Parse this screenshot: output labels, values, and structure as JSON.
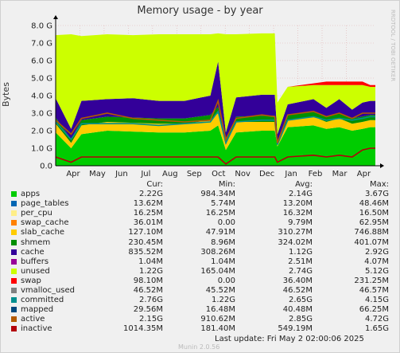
{
  "title": "Memory usage - by year",
  "ylabel": "Bytes",
  "side_text": "RRDTOOL / TOBI OETIKER",
  "watermark": "Munin 2.0.56",
  "last_update": "Last update: Fri May  2 02:00:06 2025",
  "legend_headers": {
    "cur": "Cur:",
    "min": "Min:",
    "avg": "Avg:",
    "max": "Max:"
  },
  "legend": [
    {
      "name": "apps",
      "color": "#00cc00",
      "cur": "2.22G",
      "min": "984.34M",
      "avg": "2.14G",
      "max": "3.67G"
    },
    {
      "name": "page_tables",
      "color": "#0066b3",
      "cur": "13.62M",
      "min": "5.74M",
      "avg": "13.20M",
      "max": "48.46M"
    },
    {
      "name": "per_cpu",
      "color": "#ffee88",
      "cur": "16.25M",
      "min": "16.25M",
      "avg": "16.32M",
      "max": "16.50M"
    },
    {
      "name": "swap_cache",
      "color": "#ff8000",
      "cur": "36.01M",
      "min": "0.00",
      "avg": "9.79M",
      "max": "62.95M"
    },
    {
      "name": "slab_cache",
      "color": "#ffcc00",
      "cur": "127.10M",
      "min": "47.91M",
      "avg": "310.27M",
      "max": "746.88M"
    },
    {
      "name": "shmem",
      "color": "#008f00",
      "cur": "230.45M",
      "min": "8.96M",
      "avg": "324.02M",
      "max": "401.07M"
    },
    {
      "name": "cache",
      "color": "#330099",
      "cur": "835.52M",
      "min": "308.26M",
      "avg": "1.12G",
      "max": "2.92G"
    },
    {
      "name": "buffers",
      "color": "#990099",
      "cur": "1.04M",
      "min": "1.04M",
      "avg": "2.51M",
      "max": "4.07M"
    },
    {
      "name": "unused",
      "color": "#ccff00",
      "cur": "1.22G",
      "min": "165.04M",
      "avg": "2.74G",
      "max": "5.12G"
    },
    {
      "name": "swap",
      "color": "#ff0000",
      "cur": "98.10M",
      "min": "0.00",
      "avg": "36.40M",
      "max": "231.25M"
    },
    {
      "name": "vmalloc_used",
      "color": "#808080",
      "cur": "46.52M",
      "min": "45.52M",
      "avg": "46.52M",
      "max": "46.57M"
    },
    {
      "name": "committed",
      "color": "#008f8f",
      "cur": "2.76G",
      "min": "1.22G",
      "avg": "2.65G",
      "max": "4.15G"
    },
    {
      "name": "mapped",
      "color": "#00487d",
      "cur": "29.56M",
      "min": "16.48M",
      "avg": "40.48M",
      "max": "66.25M"
    },
    {
      "name": "active",
      "color": "#b35a00",
      "cur": "2.15G",
      "min": "910.62M",
      "avg": "2.85G",
      "max": "4.72G"
    },
    {
      "name": "inactive",
      "color": "#b3000a",
      "cur": "1014.35M",
      "min": "181.40M",
      "avg": "549.19M",
      "max": "1.65G"
    }
  ],
  "chart_data": {
    "type": "area",
    "title": "Memory usage - by year",
    "ylabel": "Bytes",
    "ylim": [
      0,
      8
    ],
    "yticks": [
      "0.0",
      "1.0 G",
      "2.0 G",
      "3.0 G",
      "4.0 G",
      "5.0 G",
      "6.0 G",
      "7.0 G",
      "8.0 G"
    ],
    "xticks": [
      "Apr",
      "May",
      "Jun",
      "Jul",
      "Aug",
      "Sep",
      "Oct",
      "Nov",
      "Dec",
      "Jan",
      "Feb",
      "Mar",
      "Apr"
    ],
    "x": [
      0,
      0.6,
      1,
      2,
      3,
      4,
      5,
      6,
      6.3,
      6.6,
      7,
      8,
      8.5,
      8.6,
      9,
      10,
      10.5,
      11,
      11.5,
      11.9,
      12.2,
      12.4
    ],
    "series": [
      {
        "name": "apps",
        "values": [
          1.9,
          1.0,
          1.8,
          2.0,
          1.95,
          1.9,
          1.9,
          2.0,
          2.3,
          0.9,
          1.9,
          2.0,
          2.0,
          1.1,
          2.2,
          2.3,
          2.1,
          2.2,
          2.0,
          2.1,
          2.2,
          2.2
        ]
      },
      {
        "name": "slab_cache",
        "values": [
          0.5,
          0.3,
          0.5,
          0.5,
          0.5,
          0.5,
          0.5,
          0.6,
          0.7,
          0.3,
          0.6,
          0.5,
          0.5,
          0.2,
          0.4,
          0.5,
          0.4,
          0.5,
          0.4,
          0.4,
          0.4,
          0.4
        ]
      },
      {
        "name": "shmem",
        "values": [
          0.35,
          0.2,
          0.3,
          0.3,
          0.3,
          0.3,
          0.3,
          0.3,
          0.35,
          0.2,
          0.3,
          0.35,
          0.35,
          0.1,
          0.3,
          0.3,
          0.3,
          0.3,
          0.3,
          0.3,
          0.3,
          0.3
        ]
      },
      {
        "name": "cache",
        "values": [
          1.1,
          0.6,
          1.1,
          1.0,
          1.1,
          1.0,
          1.0,
          1.1,
          2.6,
          0.5,
          1.1,
          1.2,
          1.2,
          0.4,
          0.6,
          0.7,
          0.5,
          0.8,
          0.5,
          0.8,
          0.8,
          0.8
        ]
      },
      {
        "name": "unused",
        "values": [
          3.6,
          5.4,
          3.7,
          3.7,
          3.6,
          3.8,
          3.8,
          3.5,
          1.6,
          5.6,
          3.6,
          3.5,
          3.5,
          1.8,
          1.0,
          0.8,
          1.3,
          0.8,
          1.4,
          1.0,
          0.8,
          0.8
        ]
      },
      {
        "name": "swap",
        "values": [
          0,
          0,
          0,
          0,
          0,
          0,
          0,
          0,
          0,
          0,
          0,
          0,
          0,
          0,
          0,
          0.1,
          0.2,
          0.2,
          0.2,
          0.2,
          0.1,
          0.1
        ]
      },
      {
        "name": "committed",
        "values": [
          2.5,
          1.5,
          2.4,
          2.4,
          2.4,
          2.3,
          2.4,
          2.5,
          3.1,
          1.3,
          2.5,
          2.6,
          2.6,
          1.2,
          2.6,
          2.8,
          2.6,
          2.7,
          2.6,
          2.7,
          2.8,
          2.8
        ]
      },
      {
        "name": "active",
        "values": [
          2.6,
          1.8,
          2.7,
          3.0,
          2.7,
          2.6,
          2.5,
          2.6,
          3.7,
          1.5,
          2.7,
          2.9,
          2.8,
          1.3,
          2.9,
          3.1,
          2.8,
          3.0,
          2.7,
          3.0,
          3.0,
          3.0
        ]
      },
      {
        "name": "inactive",
        "values": [
          0.5,
          0.2,
          0.5,
          0.5,
          0.5,
          0.5,
          0.5,
          0.5,
          0.5,
          0.1,
          0.5,
          0.5,
          0.5,
          0.2,
          0.5,
          0.6,
          0.5,
          0.6,
          0.5,
          0.9,
          1.0,
          1.0
        ]
      }
    ],
    "grid": true,
    "legend": "bottom"
  }
}
